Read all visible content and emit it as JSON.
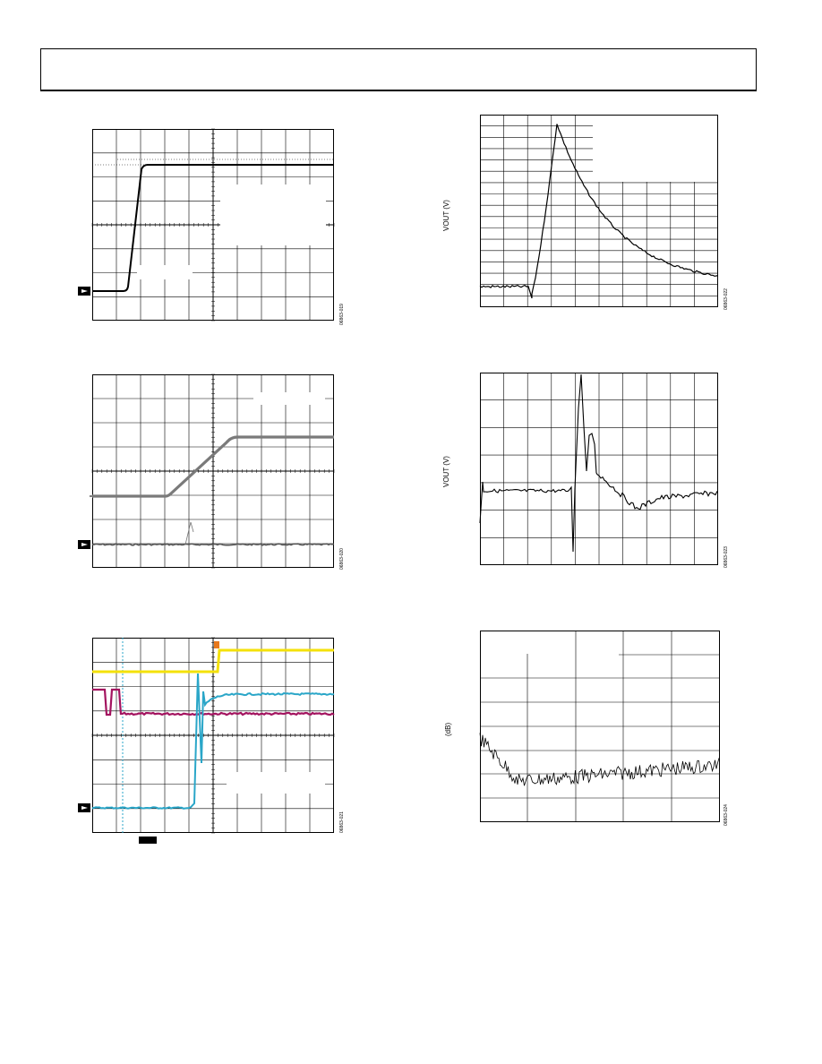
{
  "figures": {
    "fig19": {
      "id": "06863-019"
    },
    "fig20": {
      "id": "06863-020"
    },
    "fig21": {
      "id": "06863-021"
    },
    "fig22": {
      "id": "06863-022",
      "ylabel": "VOUT (V)"
    },
    "fig23": {
      "id": "06863-023",
      "ylabel": "VOUT (V)"
    },
    "fig24": {
      "id": "06863-024",
      "ylabel": "(dB)"
    }
  },
  "colors": {
    "trace_gray": "#7a7a7a",
    "trace_yellow": "#f4e10a",
    "trace_cyan": "#2aa6c8",
    "trace_magenta": "#a3135f",
    "trace_orange": "#e8791c"
  }
}
